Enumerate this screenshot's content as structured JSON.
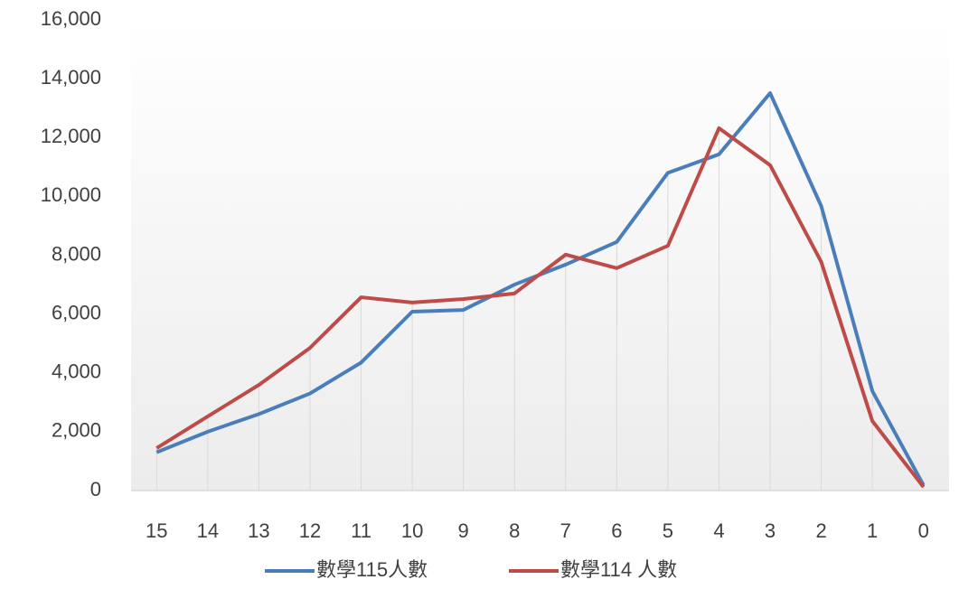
{
  "chart_data": {
    "type": "line",
    "categories": [
      "15",
      "14",
      "13",
      "12",
      "11",
      "10",
      "9",
      "8",
      "7",
      "6",
      "5",
      "4",
      "3",
      "2",
      "1",
      "0"
    ],
    "series": [
      {
        "name": "數學115人數",
        "color": "#4a7ebb",
        "values": [
          1300,
          2000,
          2600,
          3300,
          4350,
          6080,
          6140,
          7000,
          7680,
          8450,
          10800,
          11430,
          13510,
          9670,
          3380,
          180
        ]
      },
      {
        "name": "數學114 人數",
        "color": "#be4b48",
        "values": [
          1440,
          2520,
          3590,
          4850,
          6570,
          6390,
          6510,
          6700,
          8020,
          7560,
          8320,
          12320,
          11060,
          7770,
          2360,
          120
        ]
      }
    ],
    "ylim": [
      0,
      16000
    ],
    "yticks": [
      0,
      {
        "value": 2000,
        "label": "2,000"
      },
      {
        "value": 4000,
        "label": "4,000"
      },
      {
        "value": 6000,
        "label": "6,000"
      },
      {
        "value": 8000,
        "label": "8,000"
      },
      {
        "value": 10000,
        "label": "10,000"
      },
      {
        "value": 12000,
        "label": "12,000"
      },
      {
        "value": 14000,
        "label": "14,000"
      },
      {
        "value": 16000,
        "label": "16,000"
      }
    ],
    "drop_lines": true,
    "legend": "bottom"
  }
}
